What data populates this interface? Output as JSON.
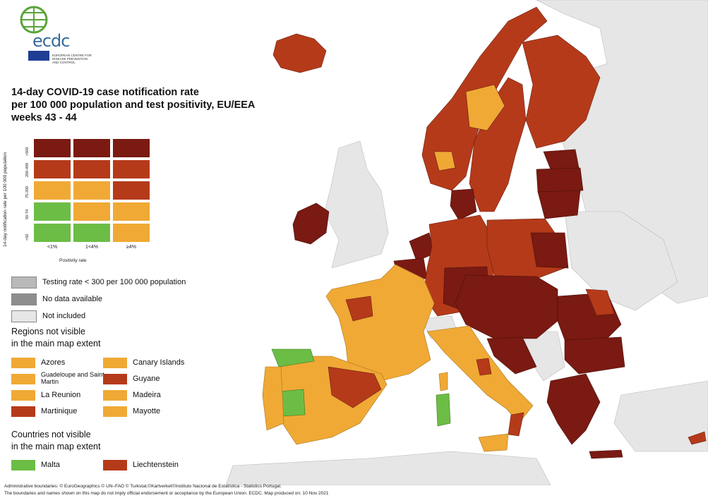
{
  "logo": {
    "text": "ecdc",
    "subtitle": "EUROPEAN CENTRE FOR DISEASE PREVENTION AND CONTROL"
  },
  "title": {
    "line1": "14-day COVID-19 case notification rate",
    "line2": "per 100 000 population and test positivity, EU/EEA",
    "line3": "weeks 43 - 44"
  },
  "matrix": {
    "y_axis_label": "14-day notification rate per 100 000 population",
    "x_axis_label": "Positivity rate",
    "rows": [
      ">500",
      "200-499",
      "75-200",
      "50-74",
      "<50"
    ],
    "cols": [
      "<1%",
      "1<4%",
      "≥4%"
    ],
    "colors": [
      [
        "#7a1a12",
        "#7a1a12",
        "#7a1a12"
      ],
      [
        "#b53a1a",
        "#b53a1a",
        "#b53a1a"
      ],
      [
        "#f0a935",
        "#f0a935",
        "#b53a1a"
      ],
      [
        "#6cbd45",
        "#f0a935",
        "#f0a935"
      ],
      [
        "#6cbd45",
        "#6cbd45",
        "#f0a935"
      ]
    ]
  },
  "legend": {
    "testing": "Testing rate < 300 per 100 000 population",
    "no_data": "No data available",
    "not_included": "Not included",
    "colors": {
      "testing": "#b9b9b9",
      "no_data": "#8d8d8d",
      "not_included": "#e6e6e6"
    }
  },
  "regions": {
    "heading1": "Regions not visible",
    "heading2": "in the main map extent",
    "items": [
      {
        "label": "Azores",
        "color": "#f0a935"
      },
      {
        "label": "Canary Islands",
        "color": "#f0a935"
      },
      {
        "label": "Guadeloupe and Saint Martin",
        "color": "#f0a935"
      },
      {
        "label": "Guyane",
        "color": "#b53a1a"
      },
      {
        "label": "La Reunion",
        "color": "#f0a935"
      },
      {
        "label": "Madeira",
        "color": "#f0a935"
      },
      {
        "label": "Martinique",
        "color": "#b53a1a"
      },
      {
        "label": "Mayotte",
        "color": "#f0a935"
      }
    ]
  },
  "countries": {
    "heading1": "Countries not visible",
    "heading2": "in the main map extent",
    "items": [
      {
        "label": "Malta",
        "color": "#6cbd45"
      },
      {
        "label": "Liechtenstein",
        "color": "#b53a1a"
      }
    ]
  },
  "footer": {
    "line1": "Administrative boundaries: © EuroGeographics © UN–FAO © Turkstat.©Kartverket©Instituto Nacional de Estatística - Statistics Portugal.",
    "line2": "The boundaries and names shown on this map do not imply official endorsement or acceptance by the European Union. ECDC. Map produced on: 10 Nov 2021"
  }
}
